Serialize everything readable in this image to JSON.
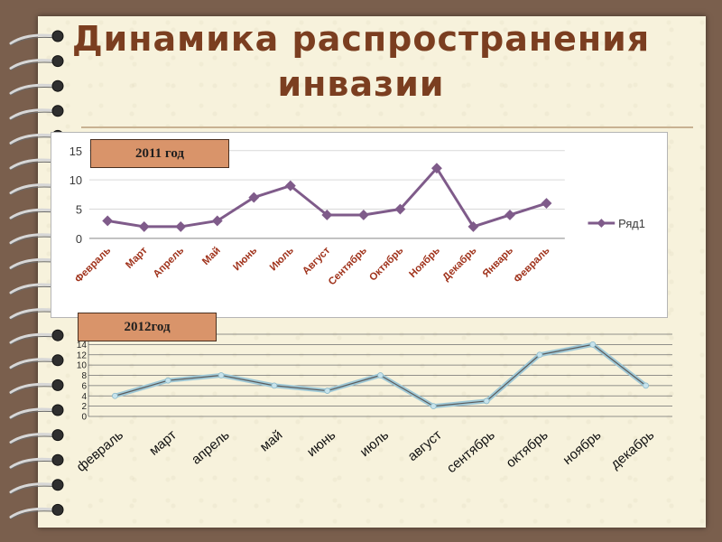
{
  "slide": {
    "title": "Динамика распространения инвазии"
  },
  "colors": {
    "background": "#7a5f4d",
    "paper": "#f7f2dc",
    "title": "#7b3e20",
    "series2011": "#7f5b8a",
    "series2012_outer": "#9fc8d6",
    "series2012_inner": "#5c5c5c",
    "badge": "#d9946a"
  },
  "chart_data": [
    {
      "type": "line",
      "badge": "2011 год",
      "categories": [
        "Февраль",
        "Март",
        "Апрель",
        "Май",
        "Июнь",
        "Июль",
        "Август",
        "Сентябрь",
        "Октябрь",
        "Ноябрь",
        "Декабрь",
        "Январь",
        "Февраль"
      ],
      "series": [
        {
          "name": "Ряд1",
          "values": [
            3,
            2,
            2,
            3,
            7,
            9,
            4,
            4,
            5,
            12,
            2,
            4,
            6
          ]
        }
      ],
      "yticks": [
        0,
        5,
        10,
        15
      ],
      "ylim": [
        0,
        15
      ],
      "legend": "right",
      "grid": true,
      "marker": "diamond"
    },
    {
      "type": "line",
      "badge": "2012год",
      "categories": [
        "февраль",
        "март",
        "апрель",
        "май",
        "июнь",
        "июль",
        "август",
        "сентябрь",
        "октябрь",
        "ноябрь",
        "декабрь"
      ],
      "series": [
        {
          "values": [
            4,
            7,
            8,
            6,
            5,
            8,
            2,
            3,
            12,
            14,
            6
          ]
        }
      ],
      "yticks": [
        0,
        2,
        4,
        6,
        8,
        10,
        12,
        14
      ],
      "ylim": [
        0,
        16
      ],
      "grid": true
    }
  ]
}
